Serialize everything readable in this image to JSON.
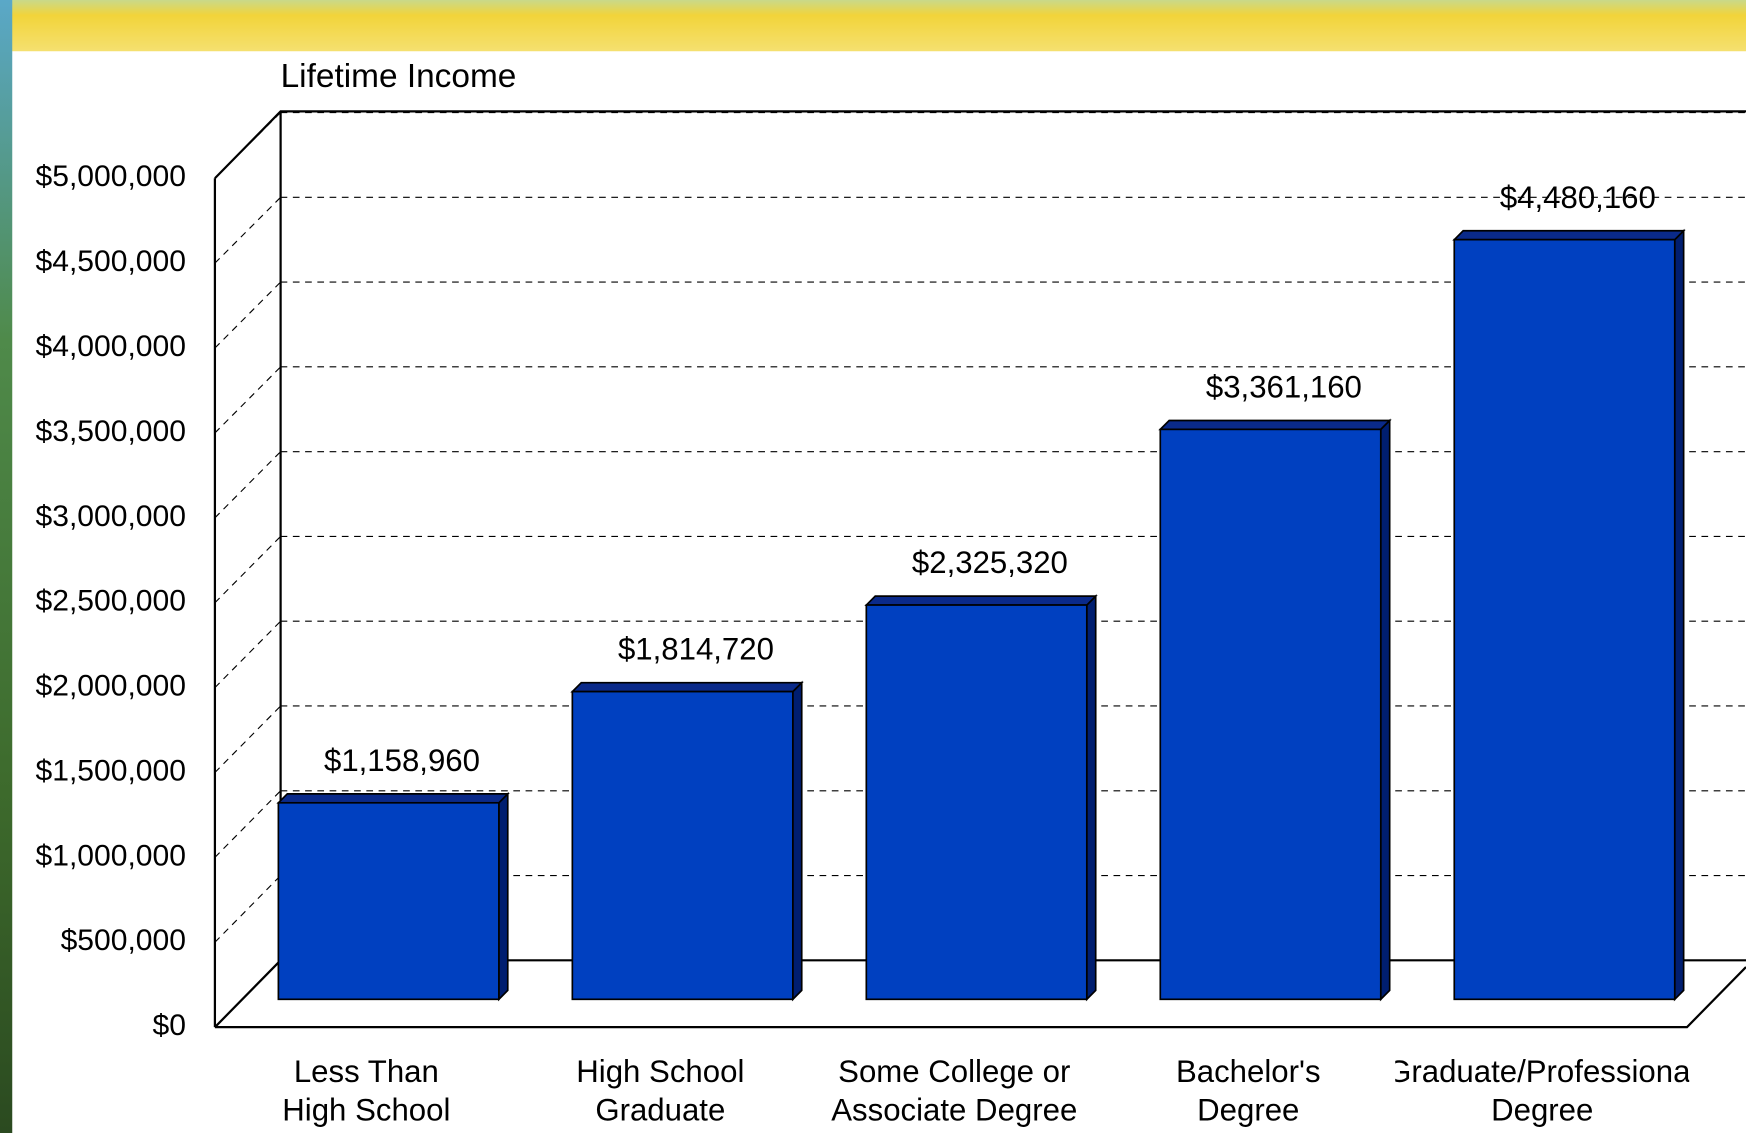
{
  "chart_data": {
    "type": "bar3d",
    "title": "Lifetime Income",
    "categories": [
      "Less Than High School",
      "High School Graduate",
      "Some College or Associate Degree",
      "Bachelor's Degree",
      "Graduate/Professional Degree"
    ],
    "values": [
      1158960,
      1814720,
      2325320,
      3361160,
      4480160
    ],
    "value_labels": [
      "$1,158,960",
      "$1,814,720",
      "$2,325,320",
      "$3,361,160",
      "$4,480,160"
    ],
    "color": "#0040c0",
    "ylim": [
      0,
      5000000
    ],
    "yticks": [
      {
        "value": 0,
        "label": "$0"
      },
      {
        "value": 500000,
        "label": "$500,000"
      },
      {
        "value": 1000000,
        "label": "$1,000,000"
      },
      {
        "value": 1500000,
        "label": "$1,500,000"
      },
      {
        "value": 2000000,
        "label": "$2,000,000"
      },
      {
        "value": 2500000,
        "label": "$2,500,000"
      },
      {
        "value": 3000000,
        "label": "$3,000,000"
      },
      {
        "value": 3500000,
        "label": "$3,500,000"
      },
      {
        "value": 4000000,
        "label": "$4,000,000"
      },
      {
        "value": 4500000,
        "label": "$4,500,000"
      },
      {
        "value": 5000000,
        "label": "$5,000,000"
      }
    ],
    "grid": true
  }
}
